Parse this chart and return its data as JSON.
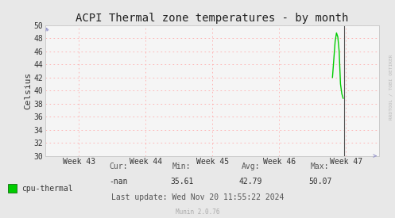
{
  "title": "ACPI Thermal zone temperatures - by month",
  "ylabel": "Celsius",
  "bg_color": "#e8e8e8",
  "plot_bg_color": "#f5f5f5",
  "grid_color": "#ffaaaa",
  "xmin": 0,
  "xmax": 5,
  "ymin": 30,
  "ymax": 50,
  "yticks": [
    30,
    32,
    34,
    36,
    38,
    40,
    42,
    44,
    46,
    48,
    50
  ],
  "xtick_labels": [
    "Week 43",
    "Week 44",
    "Week 45",
    "Week 46",
    "Week 47"
  ],
  "xtick_positions": [
    0.5,
    1.5,
    2.5,
    3.5,
    4.5
  ],
  "line_color": "#00cc00",
  "line_x": [
    4.3,
    4.34,
    4.36,
    4.38,
    4.4,
    4.42,
    4.44,
    4.46
  ],
  "line_y": [
    42.0,
    47.5,
    48.8,
    48.2,
    46.0,
    41.0,
    39.5,
    38.8
  ],
  "vline_x": 4.47,
  "vline_color": "#555555",
  "legend_label": "cpu-thermal",
  "legend_color": "#00cc00",
  "stats_cur": "-nan",
  "stats_min": "35.61",
  "stats_avg": "42.79",
  "stats_max": "50.07",
  "last_update": "Last update: Wed Nov 20 11:55:22 2024",
  "munin_label": "Munin 2.0.76",
  "watermark": "RRDTOOL / TOBI OETIKER",
  "arrow_color": "#9999cc",
  "title_fontsize": 10,
  "tick_fontsize": 7,
  "stats_fontsize": 7,
  "font_family": "DejaVu Sans Mono"
}
